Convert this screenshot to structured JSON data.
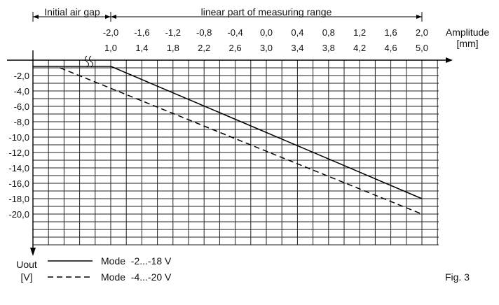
{
  "chart_data": {
    "type": "line",
    "top_labels": {
      "gap": "Initial air gap",
      "linear": "linear part of measuring range"
    },
    "x_axis": {
      "label_line1": "Amplitude",
      "label_line2": "[mm]",
      "relative_ticks": [
        "-2,0",
        "-1,6",
        "-1,2",
        "-0,8",
        "-0,4",
        "0,0",
        "0,4",
        "0,8",
        "1,2",
        "1,6",
        "2,0"
      ],
      "absolute_ticks": [
        "1,0",
        "1,4",
        "1,8",
        "2,2",
        "2,6",
        "3,0",
        "3,4",
        "3,8",
        "4,2",
        "4,6",
        "5,0"
      ],
      "range": [
        -1.0,
        5.0
      ]
    },
    "y_axis": {
      "label_line1": "Uout",
      "label_line2": "[V]",
      "ticks": [
        "-2,0",
        "-4,0",
        "-6,0",
        "-8,0",
        "-10,0",
        "-12,0",
        "-14,0",
        "-16,0",
        "-18,0",
        "-20,0"
      ],
      "tick_values": [
        -2,
        -4,
        -6,
        -8,
        -10,
        -12,
        -14,
        -16,
        -18,
        -20
      ],
      "range": [
        0,
        -22
      ]
    },
    "series": [
      {
        "name": "Mode  -2...-18 V",
        "style": "solid",
        "points": [
          [
            -0.0,
            -0.8
          ],
          [
            1.0,
            -0.8
          ],
          [
            5.0,
            -18.0
          ]
        ]
      },
      {
        "name": "Mode  -4...-20 V",
        "style": "dashed",
        "points": [
          [
            -0.0,
            -0.8
          ],
          [
            0.3,
            -0.8
          ],
          [
            5.0,
            -20.0
          ]
        ]
      }
    ],
    "grid": true,
    "legend": "bottom-left"
  },
  "figure_label": "Fig. 3"
}
